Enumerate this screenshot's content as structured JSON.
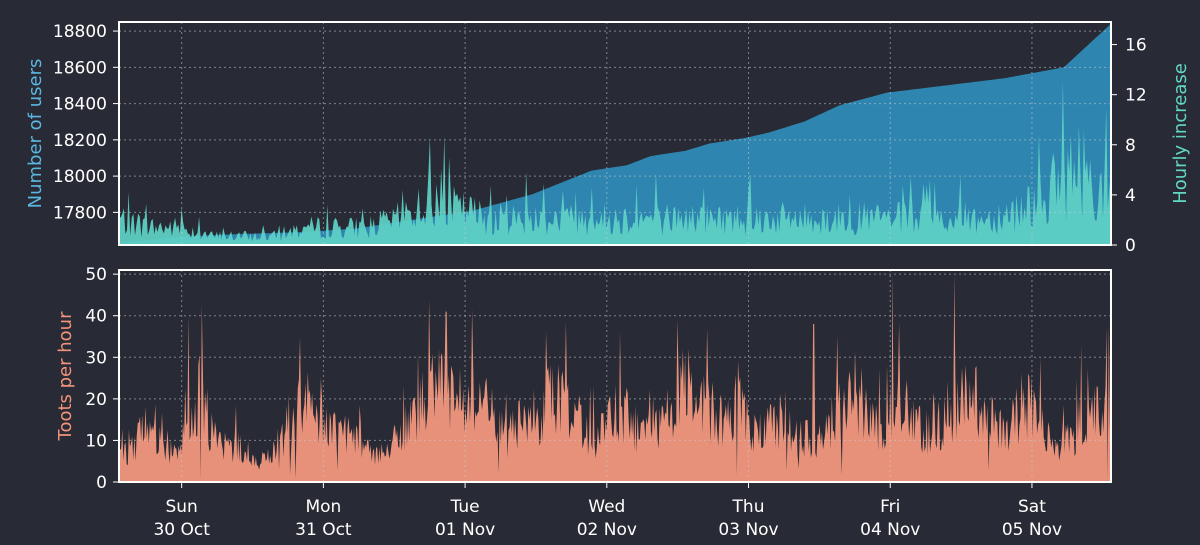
{
  "colors": {
    "background": "#282b35",
    "users": "#2e86b0",
    "users_label": "#5bb6e0",
    "hourly": "#5ed3c6",
    "hourly_label": "#62d8c4",
    "toots": "#e8917a",
    "toots_label": "#f0937a",
    "frame": "#ffffff",
    "grid": "#c8cad0"
  },
  "chart_data": [
    {
      "type": "area",
      "title": "",
      "ylabel": "Number of users",
      "y2label": "Hourly increase",
      "ylim": [
        17620,
        18850
      ],
      "y2lim": [
        0,
        17.8
      ],
      "yticks": [
        "17800",
        "18000",
        "18200",
        "18400",
        "18600",
        "18800"
      ],
      "y2ticks": [
        "0",
        "4",
        "8",
        "12",
        "16"
      ],
      "grid": true,
      "series": [
        {
          "kind": "area",
          "axis": "left",
          "note_x": "hours since start of window",
          "x": [
            0,
            10,
            20,
            30,
            40,
            50,
            60,
            70,
            80,
            86,
            90,
            96,
            100,
            106,
            110,
            116,
            122,
            130,
            140,
            150,
            160,
            168
          ],
          "values": [
            17630,
            17665,
            17680,
            17690,
            17710,
            17760,
            17810,
            17900,
            18030,
            18060,
            18110,
            18140,
            18180,
            18210,
            18240,
            18300,
            18390,
            18460,
            18500,
            18540,
            18600,
            18840
          ]
        },
        {
          "kind": "bars",
          "axis": "right",
          "values": [
            3,
            2,
            2,
            1,
            1,
            1,
            2,
            2,
            2,
            3,
            5,
            4,
            3,
            3,
            3,
            3,
            3,
            3,
            3,
            3,
            3,
            3,
            3,
            3,
            3,
            3,
            3,
            3,
            3,
            4,
            6,
            9,
            5
          ]
        }
      ]
    },
    {
      "type": "bar",
      "title": "",
      "ylabel": "Toots per hour",
      "ylim": [
        0,
        51
      ],
      "yticks": [
        "0",
        "10",
        "20",
        "30",
        "40",
        "50"
      ],
      "grid": true,
      "x_ticks": [
        {
          "day": "Sun",
          "date": "30 Oct"
        },
        {
          "day": "Mon",
          "date": "31 Oct"
        },
        {
          "day": "Tue",
          "date": "01 Nov"
        },
        {
          "day": "Wed",
          "date": "02 Nov"
        },
        {
          "day": "Thu",
          "date": "03 Nov"
        },
        {
          "day": "Fri",
          "date": "04 Nov"
        },
        {
          "day": "Sat",
          "date": "05 Nov"
        }
      ],
      "series": [
        {
          "kind": "bars",
          "peaks": [
            40,
            41,
            39,
            38,
            50,
            50,
            33
          ],
          "values": [
            11,
            8,
            14,
            12,
            10,
            9,
            15,
            25,
            12,
            9,
            10,
            6,
            5,
            7,
            12,
            18,
            22,
            18,
            16,
            14,
            12,
            9,
            8,
            10,
            12,
            16,
            21,
            28,
            24,
            20,
            22,
            25,
            18,
            12,
            14,
            20,
            17,
            24,
            22,
            18,
            14,
            12,
            16,
            20,
            15,
            12,
            14,
            18,
            22,
            26,
            24,
            18,
            16,
            22,
            15,
            13,
            15,
            18,
            14,
            12,
            11,
            16,
            22,
            26,
            20,
            14,
            18,
            22,
            16,
            13,
            15,
            18,
            20,
            25,
            22,
            16,
            14,
            18,
            22,
            16,
            12,
            10,
            14,
            18,
            20,
            24
          ]
        }
      ]
    }
  ]
}
